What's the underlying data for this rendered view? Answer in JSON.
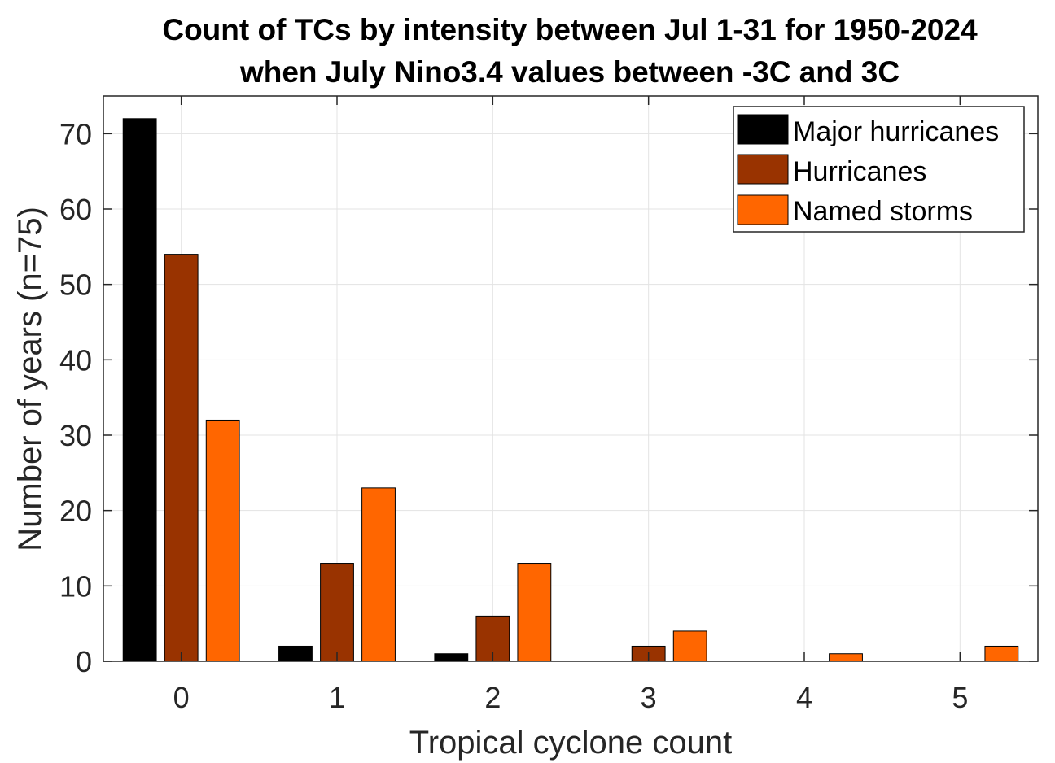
{
  "chart_data": {
    "type": "bar",
    "title_lines": [
      "Count of TCs by intensity between Jul 1-31 for 1950-2024",
      "when July Nino3.4 values between -3C and 3C"
    ],
    "xlabel": "Tropical cyclone count",
    "ylabel": "Number of years (n=75)",
    "categories": [
      "0",
      "1",
      "2",
      "3",
      "4",
      "5"
    ],
    "x_range": [
      -0.5,
      5.5
    ],
    "ylim": [
      0,
      75
    ],
    "y_ticks": [
      0,
      10,
      20,
      30,
      40,
      50,
      60,
      70
    ],
    "grid": true,
    "legend_position": "top-right",
    "series": [
      {
        "name": "Major hurricanes",
        "color": "#000000",
        "values": [
          72,
          2,
          1,
          0,
          0,
          0
        ]
      },
      {
        "name": "Hurricanes",
        "color": "#993300",
        "values": [
          54,
          13,
          6,
          2,
          0,
          0
        ]
      },
      {
        "name": "Named storms",
        "color": "#ff6600",
        "values": [
          32,
          23,
          13,
          4,
          1,
          2
        ]
      }
    ]
  }
}
